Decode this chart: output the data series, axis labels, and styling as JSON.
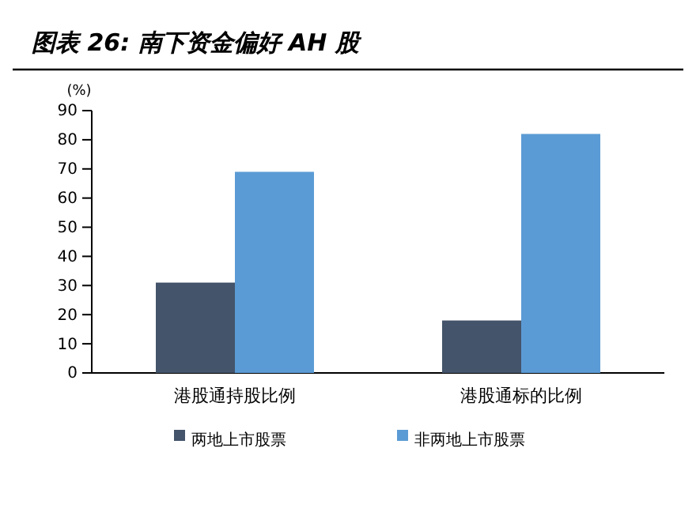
{
  "chart_data": {
    "type": "bar",
    "title": "图表 26: 南下资金偏好 AH 股",
    "ylabel": "(%)",
    "categories": [
      "港股通持股比例",
      "港股通标的比例"
    ],
    "series": [
      {
        "name": "两地上市股票",
        "color": "#44546a",
        "values": [
          31,
          18
        ]
      },
      {
        "name": "非两地上市股票",
        "color": "#5b9bd5",
        "values": [
          69,
          82
        ]
      }
    ],
    "ylim": [
      0,
      90
    ],
    "yticks": [
      0,
      10,
      20,
      30,
      40,
      50,
      60,
      70,
      80,
      90
    ],
    "grid": false,
    "legend": "bottom"
  }
}
